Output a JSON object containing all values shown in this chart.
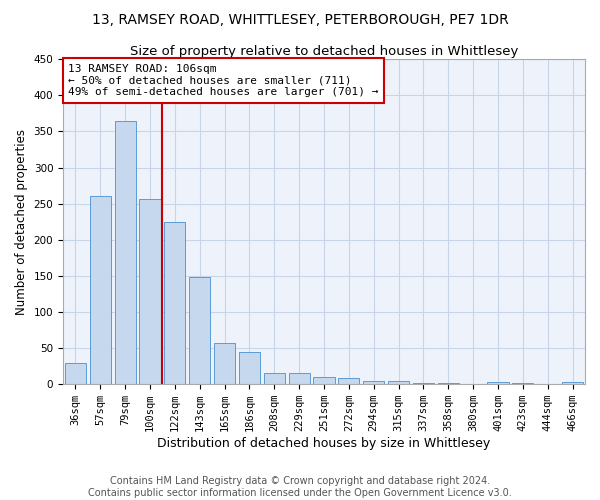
{
  "title": "13, RAMSEY ROAD, WHITTLESEY, PETERBOROUGH, PE7 1DR",
  "subtitle": "Size of property relative to detached houses in Whittlesey",
  "xlabel": "Distribution of detached houses by size in Whittlesey",
  "ylabel": "Number of detached properties",
  "categories": [
    "36sqm",
    "57sqm",
    "79sqm",
    "100sqm",
    "122sqm",
    "143sqm",
    "165sqm",
    "186sqm",
    "208sqm",
    "229sqm",
    "251sqm",
    "272sqm",
    "294sqm",
    "315sqm",
    "337sqm",
    "358sqm",
    "380sqm",
    "401sqm",
    "423sqm",
    "444sqm",
    "466sqm"
  ],
  "values": [
    30,
    260,
    365,
    257,
    225,
    148,
    57,
    45,
    16,
    15,
    10,
    8,
    5,
    5,
    1,
    1,
    0,
    3,
    1,
    0,
    3
  ],
  "bar_color": "#c5d8ed",
  "bar_edge_color": "#5b9bd5",
  "bar_width": 0.85,
  "ylim": [
    0,
    450
  ],
  "yticks": [
    0,
    50,
    100,
    150,
    200,
    250,
    300,
    350,
    400,
    450
  ],
  "annotation_title": "13 RAMSEY ROAD: 106sqm",
  "annotation_line1": "← 50% of detached houses are smaller (711)",
  "annotation_line2": "49% of semi-detached houses are larger (701) →",
  "annotation_box_color": "#ffffff",
  "annotation_box_edge": "#cc0000",
  "red_line_color": "#cc0000",
  "grid_color": "#c8d4e8",
  "background_color": "#eef2fa",
  "footer_line1": "Contains HM Land Registry data © Crown copyright and database right 2024.",
  "footer_line2": "Contains public sector information licensed under the Open Government Licence v3.0.",
  "title_fontsize": 10,
  "subtitle_fontsize": 9.5,
  "xlabel_fontsize": 9,
  "ylabel_fontsize": 8.5,
  "tick_fontsize": 7.5,
  "annotation_fontsize": 8,
  "footer_fontsize": 7
}
